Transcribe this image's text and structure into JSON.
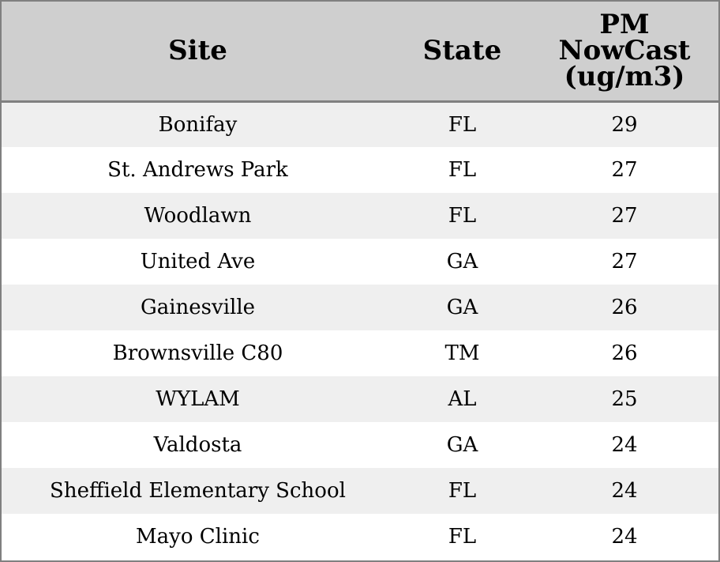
{
  "chart_data": {
    "type": "table",
    "columns": [
      "Site",
      "State",
      "PM NowCast (ug/m3)"
    ],
    "header_lines": {
      "site": [
        "Site"
      ],
      "state": [
        "State"
      ],
      "pm": [
        "PM",
        "NowCast",
        "(ug/m3)"
      ]
    },
    "rows": [
      {
        "site": "Bonifay",
        "state": "FL",
        "pm": "29"
      },
      {
        "site": "St. Andrews Park",
        "state": "FL",
        "pm": "27"
      },
      {
        "site": "Woodlawn",
        "state": "FL",
        "pm": "27"
      },
      {
        "site": "United Ave",
        "state": "GA",
        "pm": "27"
      },
      {
        "site": "Gainesville",
        "state": "GA",
        "pm": "26"
      },
      {
        "site": "Brownsville C80",
        "state": "TM",
        "pm": "26"
      },
      {
        "site": "WYLAM",
        "state": "AL",
        "pm": "25"
      },
      {
        "site": "Valdosta",
        "state": "GA",
        "pm": "24"
      },
      {
        "site": "Sheffield Elementary School",
        "state": "FL",
        "pm": "24"
      },
      {
        "site": "Mayo Clinic",
        "state": "FL",
        "pm": "24"
      }
    ]
  },
  "colors": {
    "header_bg": "#cfcfcf",
    "row_odd_bg": "#efefef",
    "row_even_bg": "#ffffff",
    "border": "#808080",
    "text": "#000000"
  }
}
